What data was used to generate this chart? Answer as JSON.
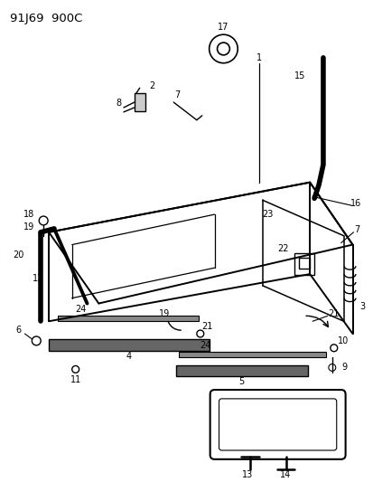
{
  "title": "91J69  900C",
  "bg_color": "#ffffff",
  "line_color": "#000000",
  "figsize": [
    4.14,
    5.33
  ],
  "dpi": 100
}
